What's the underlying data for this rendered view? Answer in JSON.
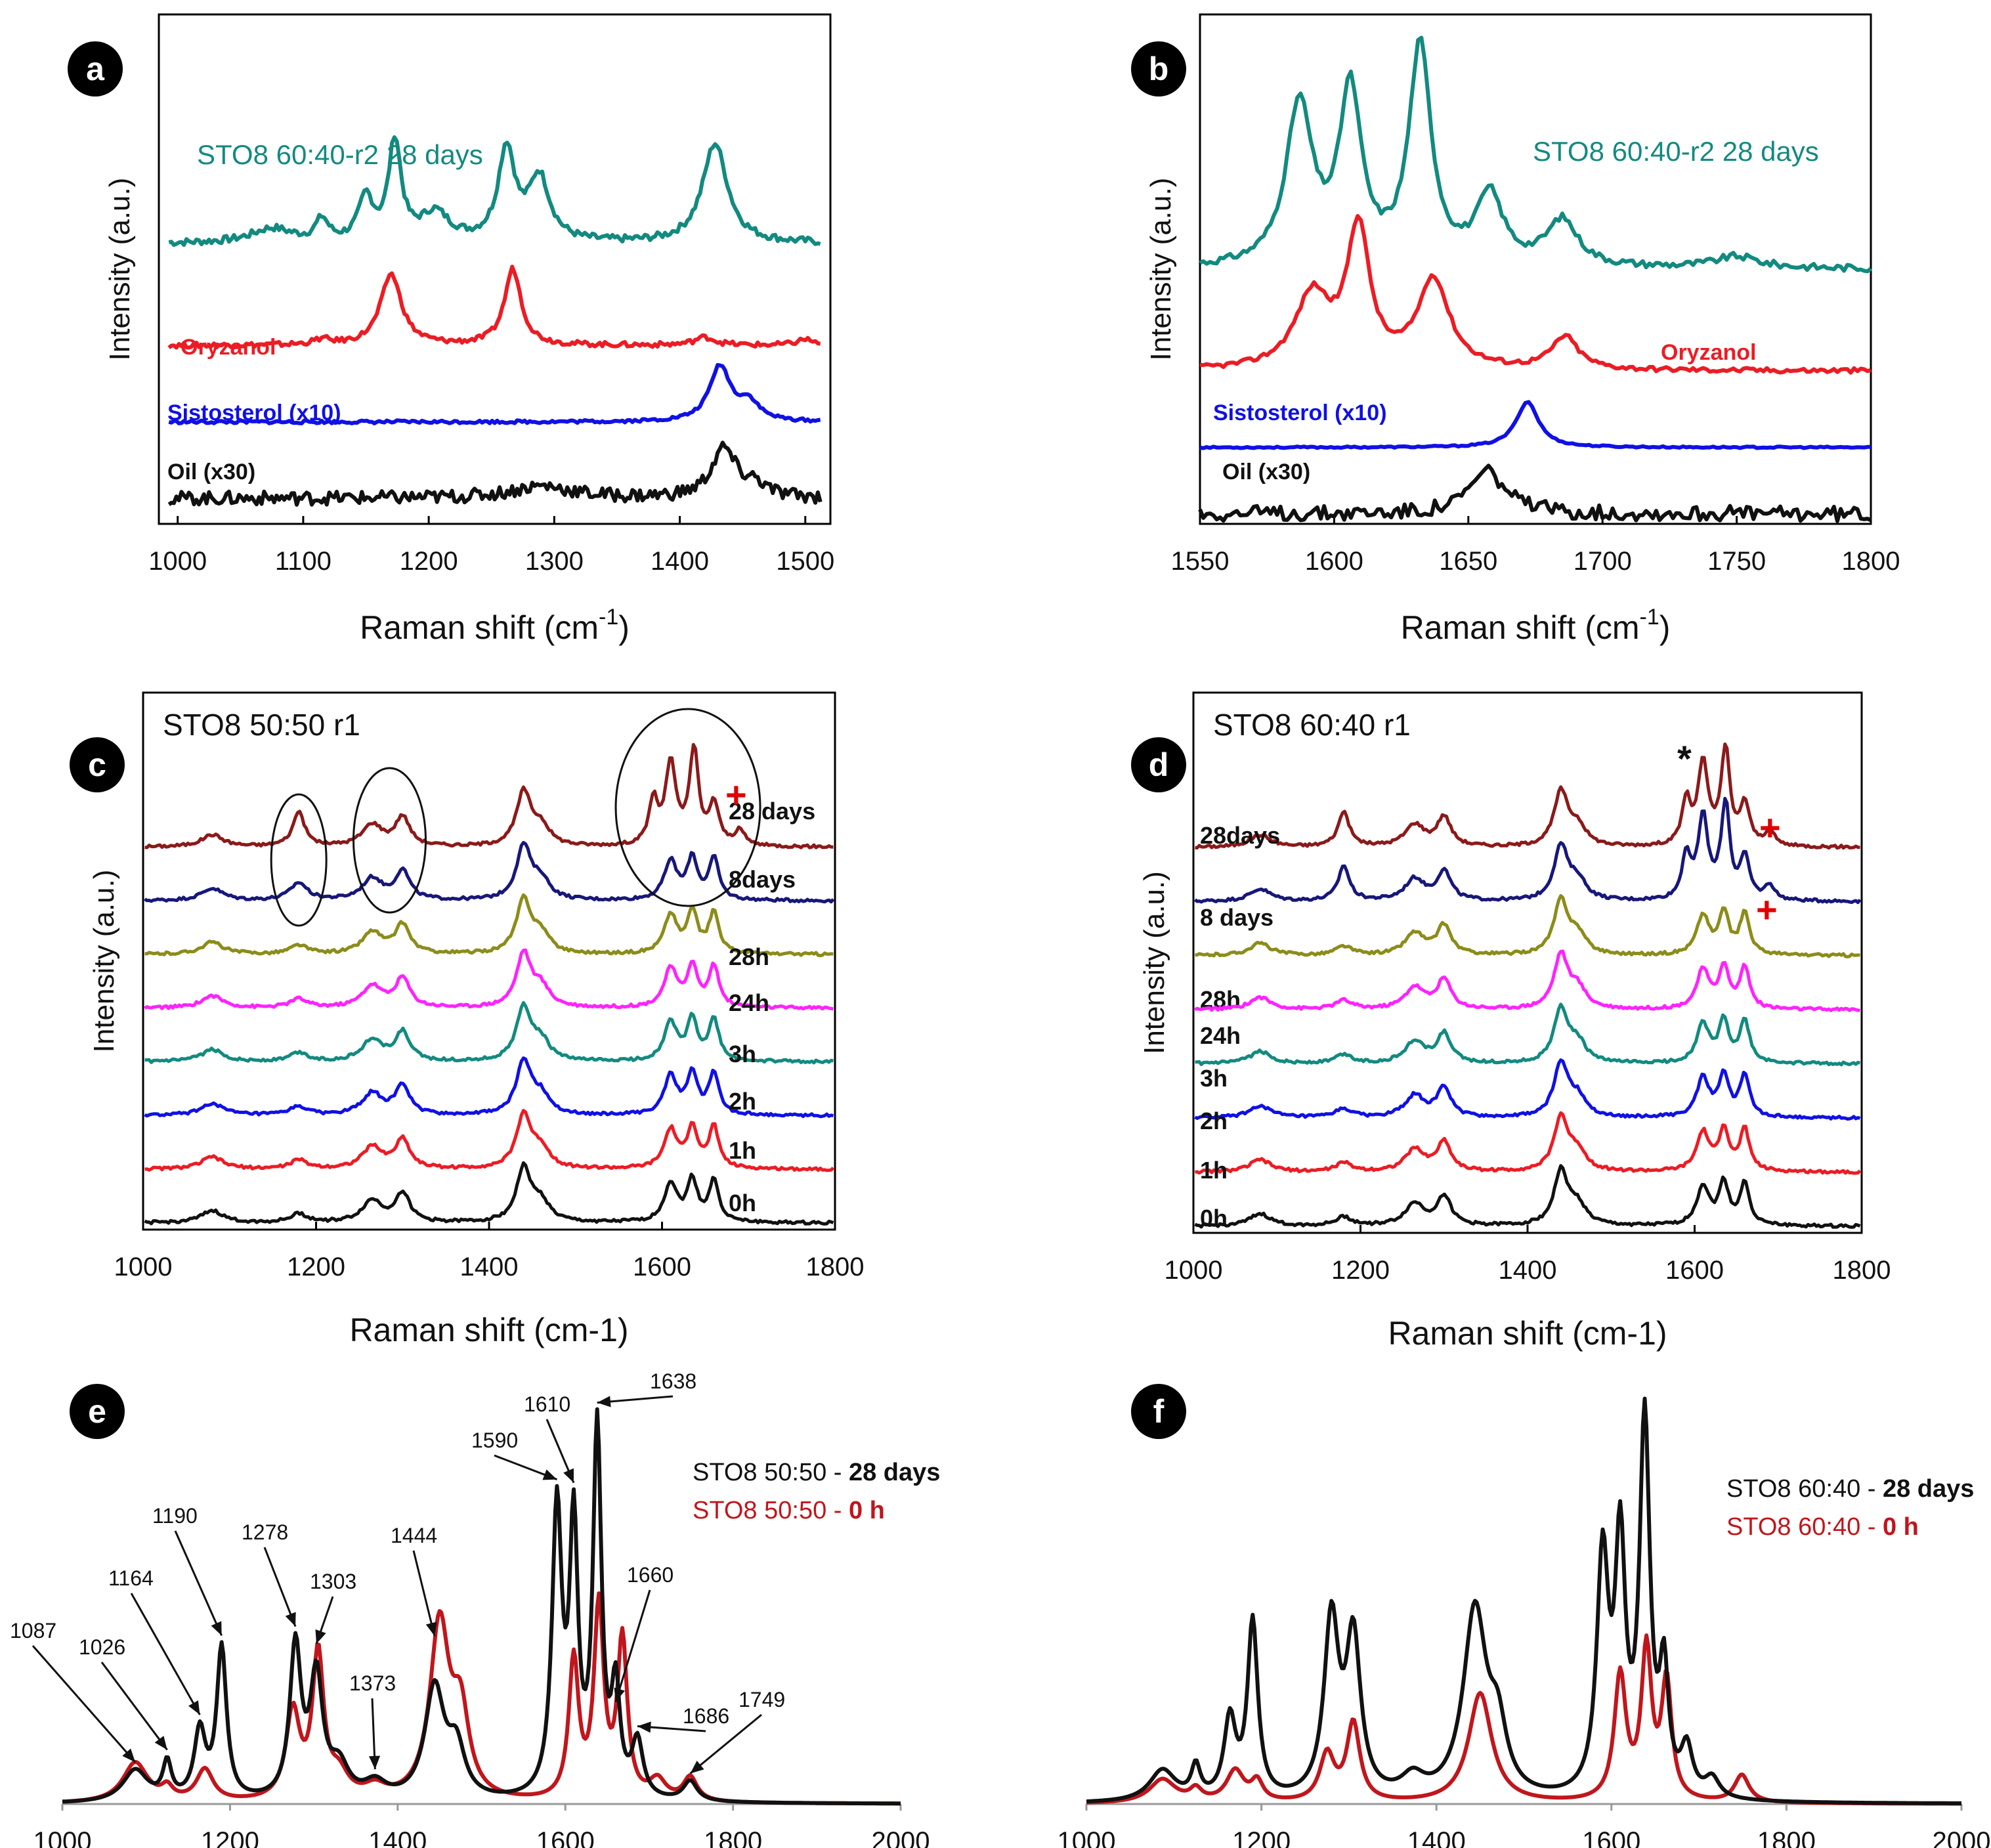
{
  "colors": {
    "teal": "#138a80",
    "red": "#ec1c24",
    "blue": "#1010e6",
    "black": "#111111",
    "darkred": "#8b1a1a",
    "navy": "#17177a",
    "olive": "#8c8c1a",
    "magenta": "#ff22ff",
    "deepred": "#c0161c"
  },
  "chart_data": [
    {
      "panel": "a",
      "type": "line",
      "xlabel": "Raman shift (cm",
      "xlabel_sup": "-1",
      "xlabel_end": ")",
      "ylabel": "Intensity (a.u.)",
      "xlim": [
        985,
        1520
      ],
      "xticks": [
        "1000",
        "1100",
        "1200",
        "1300",
        "1400",
        "1500"
      ],
      "series": [
        {
          "name": "STO8 60:40-r2 28 days",
          "color": "teal",
          "offset": 0.55,
          "scale": 0.28,
          "peaks": [
            [
              1115,
              0.15,
              6
            ],
            [
              1150,
              0.3,
              7
            ],
            [
              1173,
              0.7,
              6
            ],
            [
              1205,
              0.2,
              14
            ],
            [
              1262,
              0.65,
              8
            ],
            [
              1288,
              0.45,
              10
            ],
            [
              1428,
              0.7,
              12
            ],
            [
              1075,
              0.1,
              20
            ]
          ]
        },
        {
          "name": "Oryzanol",
          "color": "red",
          "offset": 0.35,
          "scale": 0.2,
          "peaks": [
            [
              1115,
              0.05,
              8
            ],
            [
              1170,
              0.7,
              10
            ],
            [
              1267,
              0.75,
              8
            ],
            [
              1420,
              0.08,
              10
            ],
            [
              1500,
              0.06,
              8
            ]
          ]
        },
        {
          "name": "Sistosterol (x10)",
          "color": "blue",
          "offset": 0.2,
          "scale": 0.12,
          "peaks": [
            [
              1432,
              0.9,
              10
            ],
            [
              1455,
              0.3,
              10
            ]
          ]
        },
        {
          "name": "Oil (x30)",
          "color": "black",
          "offset": 0.05,
          "scale": 0.12,
          "peaks": [
            [
              1435,
              0.8,
              12
            ],
            [
              1290,
              0.2,
              30
            ],
            [
              1460,
              0.2,
              10
            ]
          ]
        }
      ],
      "labels": [
        "STO8 60:40-r2 28 days",
        "Oryzanol",
        "Sistosterol (x10)",
        "Oil (x30)"
      ]
    },
    {
      "panel": "b",
      "type": "line",
      "xlabel": "Raman shift (cm",
      "xlabel_sup": "-1",
      "xlabel_end": ")",
      "ylabel": "Intensity (a.u.)",
      "xlim": [
        1550,
        1800
      ],
      "xticks": [
        "1550",
        "1600",
        "1650",
        "1700",
        "1750",
        "1800"
      ],
      "series": [
        {
          "name": "STO8 60:40-r2 28 days",
          "color": "teal",
          "offset": 0.5,
          "scale": 0.45,
          "peaks": [
            [
              1587,
              0.7,
              6
            ],
            [
              1606,
              0.75,
              5
            ],
            [
              1632,
              0.95,
              5
            ],
            [
              1658,
              0.3,
              6
            ],
            [
              1685,
              0.2,
              7
            ],
            [
              1750,
              0.05,
              10
            ]
          ]
        },
        {
          "name": "Oryzanol",
          "color": "red",
          "offset": 0.3,
          "scale": 0.32,
          "peaks": [
            [
              1592,
              0.45,
              8
            ],
            [
              1609,
              0.85,
              5
            ],
            [
              1637,
              0.55,
              7
            ],
            [
              1686,
              0.2,
              6
            ]
          ]
        },
        {
          "name": "Sistosterol (x10)",
          "color": "blue",
          "offset": 0.15,
          "scale": 0.1,
          "peaks": [
            [
              1672,
              0.9,
              5
            ]
          ]
        },
        {
          "name": "Oil (x30)",
          "color": "black",
          "offset": 0.02,
          "scale": 0.12,
          "peaks": [
            [
              1657,
              0.7,
              8
            ]
          ]
        }
      ],
      "labels": [
        "STO8 60:40-r2 28 days",
        "Oryzanol",
        "Sistosterol (x10)",
        "Oil (x30)"
      ]
    },
    {
      "panel": "c",
      "type": "line",
      "title": "STO8 50:50 r1",
      "xlabel": "Raman shift (cm-1)",
      "ylabel": "Intensity (a.u.)",
      "xlim": [
        1000,
        1800
      ],
      "xticks": [
        "1000",
        "1200",
        "1400",
        "1600",
        "1800"
      ],
      "series": [
        {
          "name": "28 days",
          "color": "darkred"
        },
        {
          "name": "8days",
          "color": "navy"
        },
        {
          "name": "28h",
          "color": "olive"
        },
        {
          "name": "24h",
          "color": "magenta"
        },
        {
          "name": "3h",
          "color": "teal"
        },
        {
          "name": "2h",
          "color": "blue"
        },
        {
          "name": "1h",
          "color": "red"
        },
        {
          "name": "0h",
          "color": "black"
        }
      ],
      "marker": "+"
    },
    {
      "panel": "d",
      "type": "line",
      "title": "STO8 60:40 r1",
      "xlabel": "Raman shift (cm-1)",
      "ylabel": "Intensity (a.u.)",
      "xlim": [
        1000,
        1800
      ],
      "xticks": [
        "1000",
        "1200",
        "1400",
        "1600",
        "1800"
      ],
      "series": [
        {
          "name": "28days",
          "color": "darkred"
        },
        {
          "name": "8 days",
          "color": "navy"
        },
        {
          "name": "28h",
          "color": "olive"
        },
        {
          "name": "24h",
          "color": "magenta"
        },
        {
          "name": "3h",
          "color": "teal"
        },
        {
          "name": "2h",
          "color": "blue"
        },
        {
          "name": "1h",
          "color": "red"
        },
        {
          "name": "0h",
          "color": "black"
        }
      ],
      "marker": "+",
      "star": "*"
    },
    {
      "panel": "e",
      "type": "line",
      "xlim": [
        1000,
        2000
      ],
      "xticks": [
        "1000",
        "1200",
        "1400",
        "1600",
        "1800",
        "2000"
      ],
      "legend": [
        {
          "prefix": "STO8 50:50 - ",
          "suffix": "28 days",
          "color": "black"
        },
        {
          "prefix": "STO8 50:50 - ",
          "suffix": "0 h",
          "color": "deepred"
        }
      ],
      "annotations": [
        "1087",
        "1026",
        "1164",
        "1190",
        "1278",
        "1303",
        "1373",
        "1444",
        "1590",
        "1610",
        "1638",
        "1660",
        "1686",
        "1749"
      ],
      "series": [
        {
          "name": "28 days",
          "color": "black",
          "peaks": [
            [
              1087,
              0.08,
              18
            ],
            [
              1125,
              0.09,
              6
            ],
            [
              1164,
              0.17,
              8
            ],
            [
              1190,
              0.38,
              7
            ],
            [
              1278,
              0.38,
              8
            ],
            [
              1303,
              0.3,
              9
            ],
            [
              1330,
              0.08,
              14
            ],
            [
              1373,
              0.04,
              16
            ],
            [
              1444,
              0.28,
              14
            ],
            [
              1470,
              0.12,
              12
            ],
            [
              1590,
              0.72,
              7
            ],
            [
              1610,
              0.66,
              6
            ],
            [
              1638,
              0.92,
              6
            ],
            [
              1660,
              0.26,
              6
            ],
            [
              1686,
              0.14,
              8
            ],
            [
              1749,
              0.05,
              10
            ]
          ]
        },
        {
          "name": "0 h",
          "color": "deepred",
          "peaks": [
            [
              1087,
              0.1,
              18
            ],
            [
              1125,
              0.03,
              8
            ],
            [
              1170,
              0.08,
              12
            ],
            [
              1275,
              0.22,
              10
            ],
            [
              1305,
              0.36,
              8
            ],
            [
              1330,
              0.06,
              14
            ],
            [
              1373,
              0.03,
              16
            ],
            [
              1450,
              0.44,
              14
            ],
            [
              1475,
              0.2,
              12
            ],
            [
              1610,
              0.35,
              7
            ],
            [
              1640,
              0.48,
              7
            ],
            [
              1668,
              0.4,
              7
            ],
            [
              1710,
              0.05,
              12
            ],
            [
              1749,
              0.06,
              10
            ]
          ]
        }
      ]
    },
    {
      "panel": "f",
      "type": "line",
      "xlim": [
        1000,
        2000
      ],
      "xticks": [
        "1000",
        "1200",
        "1400",
        "1600",
        "1800",
        "2000"
      ],
      "legend": [
        {
          "prefix": "STO8 60:40 - ",
          "suffix": "28 days",
          "color": "black"
        },
        {
          "prefix": "STO8 60:40 - ",
          "suffix": "0 h",
          "color": "deepred"
        }
      ],
      "series": [
        {
          "name": "28 days",
          "color": "black",
          "peaks": [
            [
              1087,
              0.08,
              18
            ],
            [
              1125,
              0.08,
              6
            ],
            [
              1164,
              0.2,
              8
            ],
            [
              1190,
              0.45,
              7
            ],
            [
              1280,
              0.45,
              10
            ],
            [
              1305,
              0.4,
              10
            ],
            [
              1373,
              0.05,
              16
            ],
            [
              1444,
              0.48,
              16
            ],
            [
              1470,
              0.15,
              12
            ],
            [
              1590,
              0.6,
              8
            ],
            [
              1610,
              0.62,
              7
            ],
            [
              1638,
              0.95,
              7
            ],
            [
              1660,
              0.3,
              6
            ],
            [
              1686,
              0.12,
              8
            ],
            [
              1715,
              0.05,
              10
            ]
          ]
        },
        {
          "name": "0 h",
          "color": "deepred",
          "peaks": [
            [
              1087,
              0.06,
              18
            ],
            [
              1125,
              0.03,
              8
            ],
            [
              1170,
              0.08,
              12
            ],
            [
              1195,
              0.05,
              8
            ],
            [
              1275,
              0.12,
              10
            ],
            [
              1305,
              0.2,
              9
            ],
            [
              1450,
              0.28,
              16
            ],
            [
              1610,
              0.32,
              8
            ],
            [
              1640,
              0.38,
              7
            ],
            [
              1663,
              0.3,
              7
            ],
            [
              1749,
              0.07,
              10
            ]
          ]
        }
      ]
    }
  ],
  "panel_letters": [
    "a",
    "b",
    "c",
    "d",
    "e",
    "f"
  ]
}
